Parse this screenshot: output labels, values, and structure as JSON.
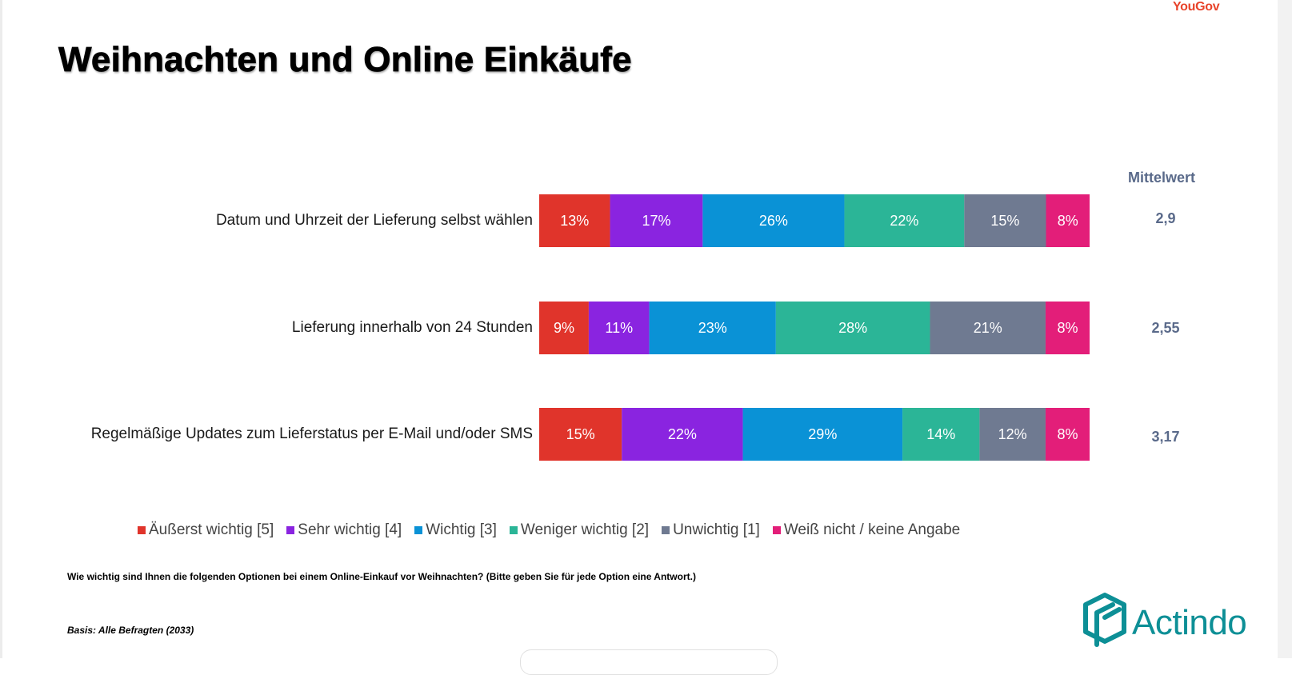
{
  "brand": {
    "name": "YouGov",
    "color": "#e8432a"
  },
  "title": "Weihnachten und Online Einkäufe",
  "chart_data": {
    "type": "bar",
    "orientation": "horizontal",
    "stacked": true,
    "unit": "%",
    "categories": [
      "Datum und Uhrzeit der Lieferung selbst wählen",
      "Lieferung innerhalb von 24 Stunden",
      "Regelmäßige Updates zum Lieferstatus per E-Mail und/oder SMS"
    ],
    "series": [
      {
        "name": "Äußerst wichtig [5]",
        "color": "#e0342b",
        "values": [
          13,
          9,
          15
        ]
      },
      {
        "name": "Sehr wichtig [4]",
        "color": "#8a24e0",
        "values": [
          17,
          11,
          22
        ]
      },
      {
        "name": "Wichtig [3]",
        "color": "#0a92d6",
        "values": [
          26,
          23,
          29
        ]
      },
      {
        "name": "Weniger wichtig [2]",
        "color": "#2bb597",
        "values": [
          22,
          28,
          14
        ]
      },
      {
        "name": "Unwichtig [1]",
        "color": "#6f7a91",
        "values": [
          15,
          21,
          12
        ]
      },
      {
        "name": "Weiß nicht / keine Angabe",
        "color": "#e31e79",
        "values": [
          8,
          8,
          8
        ]
      }
    ],
    "mean_header": "Mittelwert",
    "means": [
      "2,9",
      "2,55",
      "3,17"
    ],
    "legend_position": "bottom"
  },
  "question": "Wie wichtig sind Ihnen die folgenden Optionen bei einem Online-Einkauf vor Weihnachten? (Bitte geben Sie für jede Option eine Antwort.)",
  "basis": "Basis: Alle Befragten (2033)",
  "logo": {
    "name": "Actindo",
    "color": "#0d8f96",
    "icon": "actindo-cube-icon"
  }
}
